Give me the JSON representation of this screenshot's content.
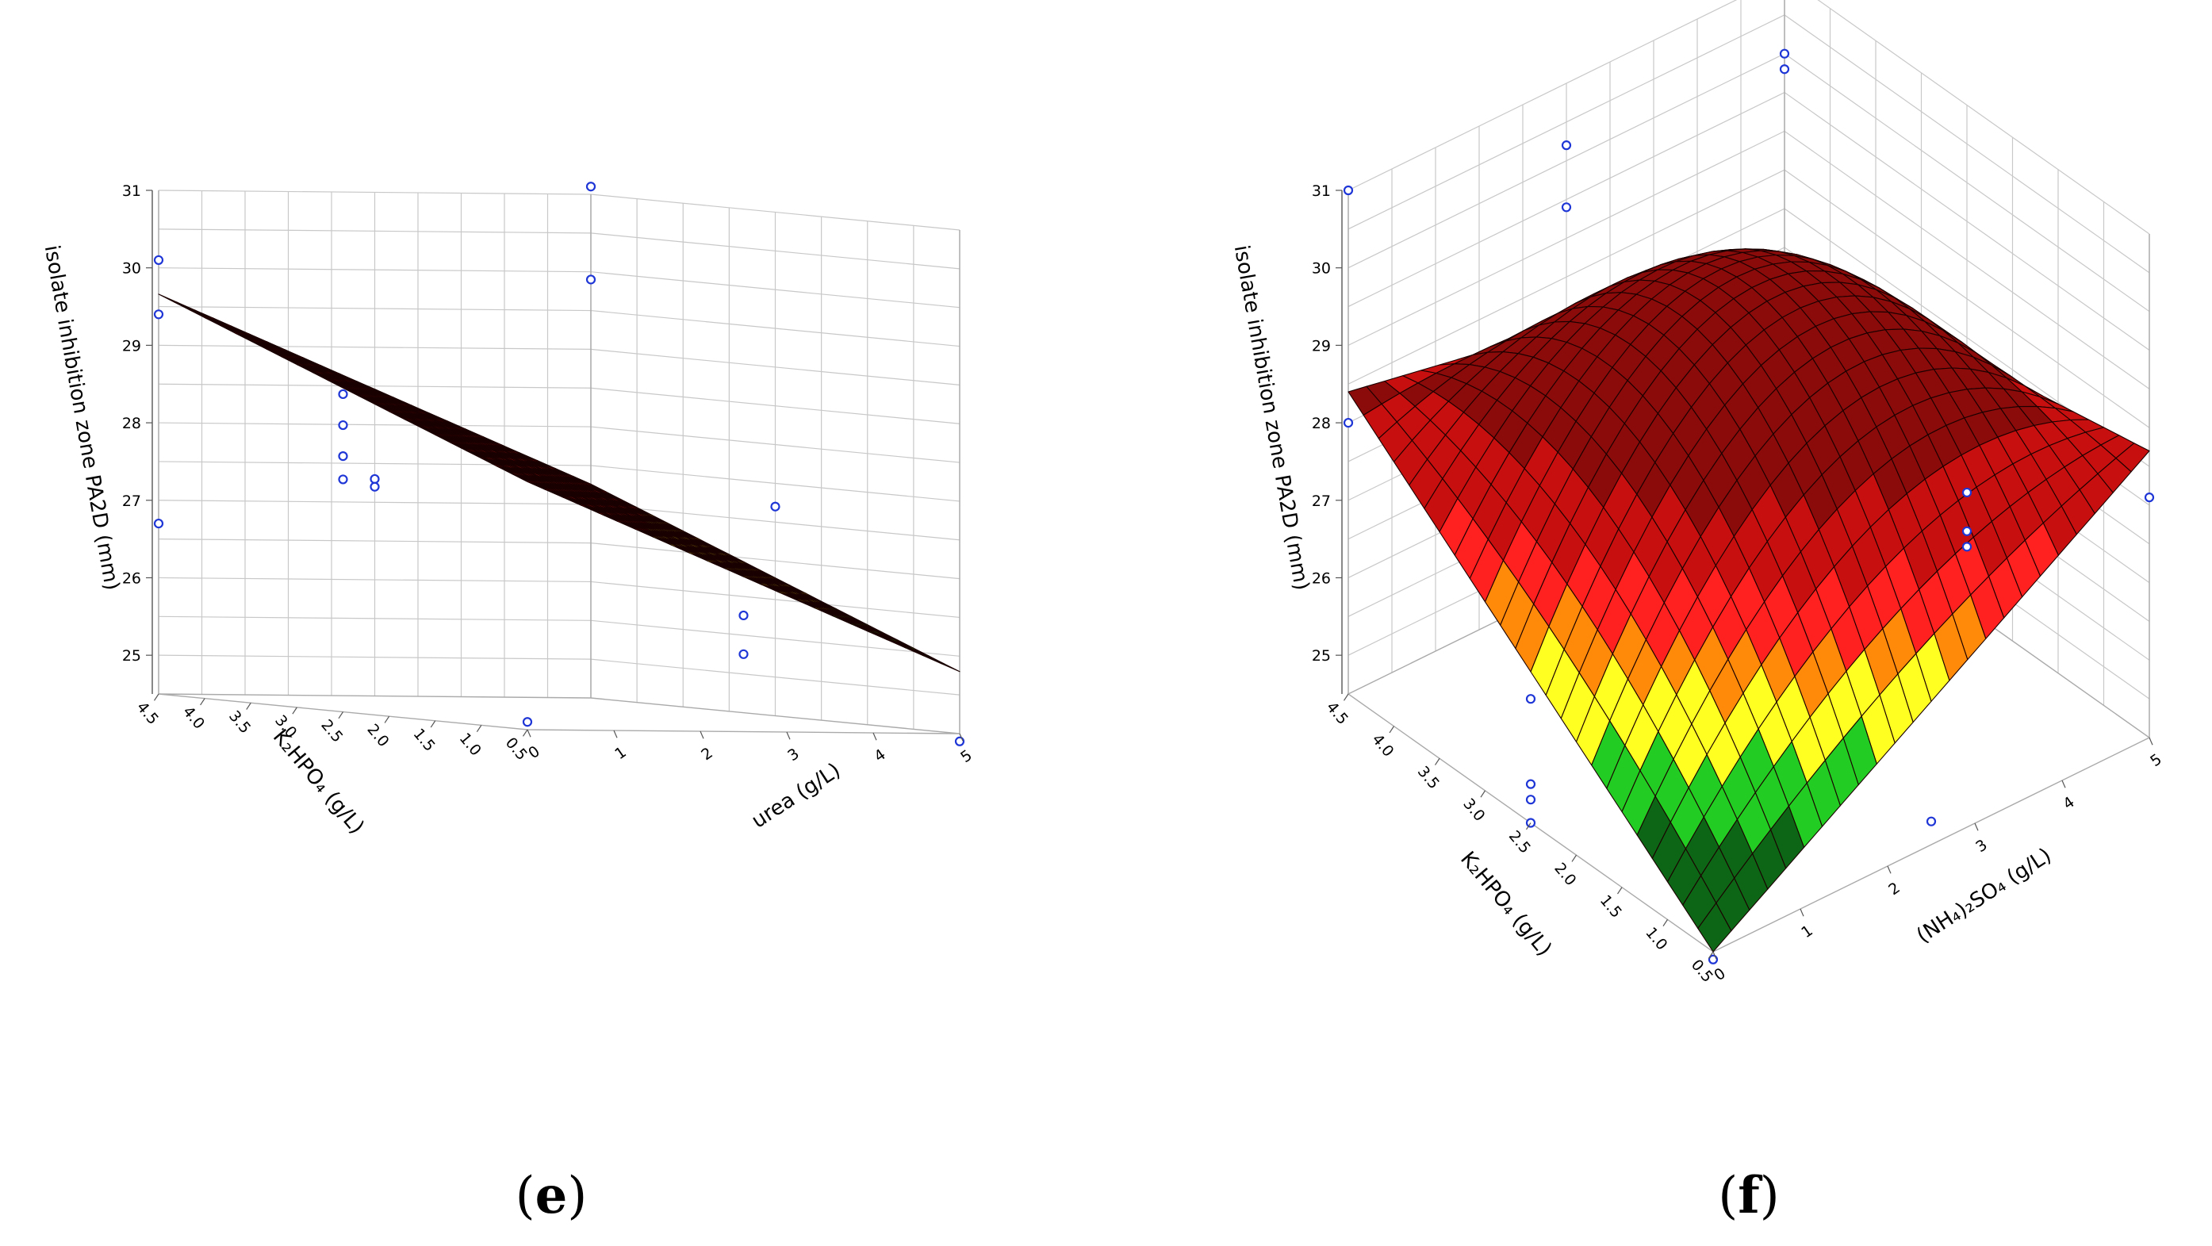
{
  "chart_data": [
    {
      "type": "surface3d",
      "panel_label": "e",
      "zlabel": "isolate inhibition zone PA2D (mm)",
      "ylabel": "K₂HPO₄ (g/L)",
      "xlabel": "urea (g/L)",
      "x_ticks": [
        "0",
        "1",
        "2",
        "3",
        "4",
        "5"
      ],
      "y_ticks": [
        "0.5",
        "1.0",
        "1.5",
        "2.0",
        "2.5",
        "3.0",
        "3.5",
        "4.0",
        "4.5"
      ],
      "z_ticks": [
        "25",
        "26",
        "27",
        "28",
        "29",
        "30",
        "31"
      ],
      "xlim": [
        0,
        5
      ],
      "ylim": [
        0.5,
        4.5
      ],
      "zlim": [
        24.5,
        31
      ],
      "surface": {
        "form": "plane",
        "z_at_origin": 27.7,
        "slope_x": -0.48,
        "slope_y": 0.49
      },
      "color_bands": [
        {
          "min": 28.0,
          "color": "#8b0a0a"
        },
        {
          "min": 27.0,
          "color": "#ff2020"
        },
        {
          "min": 26.0,
          "color": "#ffff22"
        },
        {
          "min": 25.5,
          "color": "#22cc22"
        },
        {
          "min": 0,
          "color": "#0d6616"
        }
      ],
      "points": [
        {
          "x": 0,
          "y": 0.5,
          "z": 24.6
        },
        {
          "x": 0,
          "y": 4.5,
          "z": 26.7
        },
        {
          "x": 0,
          "y": 4.5,
          "z": 29.4
        },
        {
          "x": 0,
          "y": 4.5,
          "z": 30.1
        },
        {
          "x": 0,
          "y": 2.5,
          "z": 28.6
        },
        {
          "x": 0,
          "y": 2.5,
          "z": 28.2
        },
        {
          "x": 0,
          "y": 2.5,
          "z": 27.8
        },
        {
          "x": 0,
          "y": 2.5,
          "z": 27.5
        },
        {
          "x": 5,
          "y": 4.5,
          "z": 31.1
        },
        {
          "x": 5,
          "y": 4.5,
          "z": 29.9
        },
        {
          "x": 2.5,
          "y": 0.5,
          "z": 26.0
        },
        {
          "x": 2.5,
          "y": 0.5,
          "z": 25.5
        },
        {
          "x": 5,
          "y": 0.5,
          "z": 24.4
        },
        {
          "x": 5,
          "y": 2.5,
          "z": 27.2
        },
        {
          "x": 2.5,
          "y": 4.5,
          "z": 27.3
        },
        {
          "x": 2.5,
          "y": 4.5,
          "z": 27.2
        }
      ]
    },
    {
      "type": "surface3d",
      "panel_label": "f",
      "zlabel": "isolate inhibition zone PA2D (mm)",
      "ylabel": "K₂HPO₄ (g/L)",
      "xlabel": "(NH₄)₂SO₄ (g/L)",
      "x_ticks": [
        "0",
        "1",
        "2",
        "3",
        "4",
        "5"
      ],
      "y_ticks": [
        "0.5",
        "1.0",
        "1.5",
        "2.0",
        "2.5",
        "3.0",
        "3.5",
        "4.0",
        "4.5"
      ],
      "z_ticks": [
        "25",
        "26",
        "27",
        "28",
        "29",
        "30",
        "31"
      ],
      "xlim": [
        0,
        5
      ],
      "ylim": [
        0.5,
        4.5
      ],
      "zlim": [
        24.5,
        31
      ],
      "surface": {
        "form": "dome",
        "z_at_origin": 24.5,
        "z_at_x5_y0_5": 28.2,
        "z_at_x0_y4_5": 28.4,
        "z_at_x5_y4_5": 27.3,
        "z_max": 29.7
      },
      "color_bands": [
        {
          "min": 28.3,
          "color": "#8b0a0a"
        },
        {
          "min": 27.6,
          "color": "#c80f0f"
        },
        {
          "min": 27.1,
          "color": "#ff2020"
        },
        {
          "min": 26.7,
          "color": "#ff8a0a"
        },
        {
          "min": 26.1,
          "color": "#ffff22"
        },
        {
          "min": 25.5,
          "color": "#22cc22"
        },
        {
          "min": 0,
          "color": "#0d6616"
        }
      ],
      "points": [
        {
          "x": 0,
          "y": 0.5,
          "z": 24.4
        },
        {
          "x": 0,
          "y": 4.5,
          "z": 28.0
        },
        {
          "x": 0,
          "y": 4.5,
          "z": 31.0
        },
        {
          "x": 0,
          "y": 2.5,
          "z": 26.1
        },
        {
          "x": 0,
          "y": 2.5,
          "z": 25.0
        },
        {
          "x": 0,
          "y": 2.5,
          "z": 24.8
        },
        {
          "x": 0,
          "y": 2.5,
          "z": 24.5
        },
        {
          "x": 2.5,
          "y": 4.5,
          "z": 30.2
        },
        {
          "x": 2.5,
          "y": 4.5,
          "z": 29.4
        },
        {
          "x": 5,
          "y": 4.5,
          "z": 30.0
        },
        {
          "x": 5,
          "y": 4.5,
          "z": 29.8
        },
        {
          "x": 5,
          "y": 0.5,
          "z": 27.6
        },
        {
          "x": 5,
          "y": 2.5,
          "z": 26.0
        },
        {
          "x": 5,
          "y": 2.5,
          "z": 25.5
        },
        {
          "x": 5,
          "y": 2.5,
          "z": 25.3
        },
        {
          "x": 2.5,
          "y": 0.5,
          "z": 24.8
        }
      ]
    }
  ]
}
